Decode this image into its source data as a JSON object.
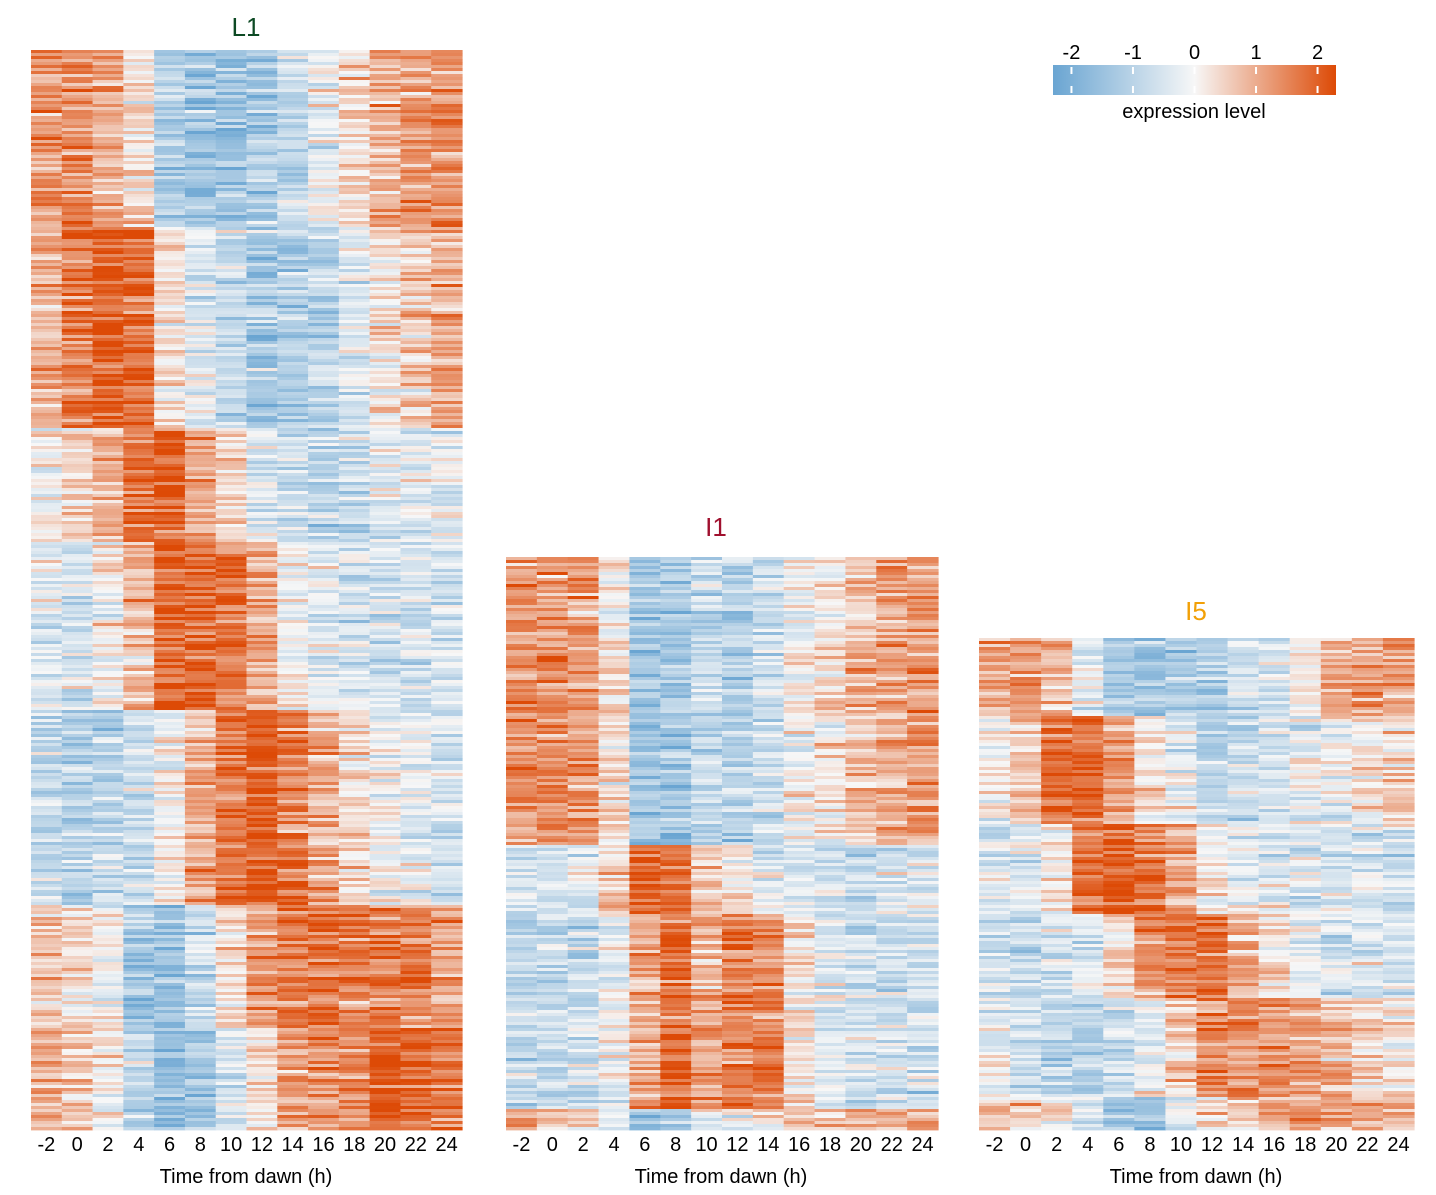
{
  "chart_data": [
    {
      "type": "heatmap",
      "title": "L1",
      "title_color": "#0d4a24",
      "xlabel": "Time from dawn (h)",
      "x": [
        "-2",
        "0",
        "2",
        "4",
        "6",
        "8",
        "10",
        "12",
        "14",
        "16",
        "18",
        "20",
        "22",
        "24"
      ],
      "clusters": [
        {
          "fraction": 0.165,
          "profile": [
            1.2,
            1.3,
            1.1,
            0.2,
            -1.2,
            -1.4,
            -1.5,
            -1.3,
            -0.8,
            -0.3,
            0.3,
            1.0,
            1.1,
            1.3
          ]
        },
        {
          "fraction": 0.185,
          "profile": [
            1.0,
            1.6,
            2.0,
            1.9,
            0.3,
            -0.4,
            -0.8,
            -1.3,
            -1.1,
            -0.9,
            -0.3,
            0.2,
            0.6,
            1.1
          ]
        },
        {
          "fraction": 0.105,
          "profile": [
            0.0,
            0.5,
            1.0,
            1.8,
            2.0,
            1.2,
            0.4,
            -0.3,
            -0.6,
            -0.8,
            -0.7,
            -0.5,
            -0.3,
            -0.2
          ]
        },
        {
          "fraction": 0.155,
          "profile": [
            -0.5,
            -0.6,
            0.1,
            0.8,
            2.0,
            1.9,
            1.6,
            1.0,
            0.0,
            -0.4,
            -0.5,
            -0.7,
            -0.6,
            -0.5
          ]
        },
        {
          "fraction": 0.18,
          "profile": [
            -0.8,
            -1.0,
            -0.9,
            -0.6,
            0.1,
            1.0,
            1.8,
            2.0,
            1.6,
            1.0,
            0.4,
            -0.1,
            -0.3,
            -0.6
          ]
        },
        {
          "fraction": 0.115,
          "profile": [
            0.6,
            0.4,
            0.0,
            -1.3,
            -1.6,
            -0.8,
            0.3,
            1.2,
            1.6,
            1.7,
            1.6,
            1.6,
            1.4,
            1.2
          ]
        },
        {
          "fraction": 0.095,
          "profile": [
            1.0,
            0.6,
            0.1,
            -1.0,
            -1.5,
            -1.3,
            -0.5,
            0.4,
            1.0,
            1.3,
            1.5,
            2.0,
            1.9,
            1.8
          ]
        }
      ]
    },
    {
      "type": "heatmap",
      "title": "I1",
      "title_color": "#a0102e",
      "xlabel": "Time from dawn (h)",
      "x": [
        "-2",
        "0",
        "2",
        "4",
        "6",
        "8",
        "10",
        "12",
        "14",
        "16",
        "18",
        "20",
        "22",
        "24"
      ],
      "clusters": [
        {
          "fraction": 0.5,
          "profile": [
            1.3,
            1.4,
            1.3,
            0.3,
            -1.3,
            -1.4,
            -0.8,
            -1.0,
            -0.7,
            -0.1,
            0.3,
            0.8,
            1.1,
            1.3
          ]
        },
        {
          "fraction": 0.12,
          "profile": [
            -0.5,
            -0.6,
            -0.3,
            0.6,
            2.0,
            1.7,
            0.6,
            0.2,
            -0.2,
            -0.4,
            -0.5,
            -0.7,
            -0.4,
            -0.3
          ]
        },
        {
          "fraction": 0.34,
          "profile": [
            -0.8,
            -0.9,
            -0.8,
            -0.2,
            0.9,
            1.8,
            1.0,
            1.6,
            1.4,
            0.2,
            -0.4,
            -0.6,
            -0.6,
            -0.7
          ]
        },
        {
          "fraction": 0.04,
          "profile": [
            1.1,
            0.7,
            0.4,
            -0.3,
            -1.4,
            -1.2,
            -0.3,
            0.0,
            0.3,
            0.8,
            1.0,
            1.0,
            0.9,
            1.0
          ]
        }
      ]
    },
    {
      "type": "heatmap",
      "title": "I5",
      "title_color": "#f2a007",
      "xlabel": "Time from dawn (h)",
      "x": [
        "-2",
        "0",
        "2",
        "4",
        "6",
        "8",
        "10",
        "12",
        "14",
        "16",
        "18",
        "20",
        "22",
        "24"
      ],
      "clusters": [
        {
          "fraction": 0.16,
          "profile": [
            1.1,
            1.3,
            0.8,
            -0.3,
            -1.2,
            -1.3,
            -1.2,
            -1.0,
            -0.7,
            -0.5,
            0.2,
            1.0,
            1.2,
            1.3
          ]
        },
        {
          "fraction": 0.22,
          "profile": [
            0.0,
            0.6,
            1.8,
            1.9,
            1.2,
            0.3,
            -0.3,
            -0.9,
            -0.7,
            -0.5,
            -0.2,
            0.0,
            0.3,
            0.4
          ]
        },
        {
          "fraction": 0.18,
          "profile": [
            -0.4,
            -0.4,
            0.0,
            1.7,
            2.0,
            1.6,
            1.0,
            0.2,
            -0.3,
            -0.5,
            -0.5,
            -0.4,
            -0.5,
            -0.7
          ]
        },
        {
          "fraction": 0.17,
          "profile": [
            -0.6,
            -0.8,
            -0.7,
            -0.4,
            0.5,
            1.4,
            1.8,
            1.8,
            0.9,
            0.2,
            -0.2,
            -0.5,
            -0.5,
            -0.6
          ]
        },
        {
          "fraction": 0.2,
          "profile": [
            -0.3,
            -0.6,
            -1.0,
            -1.1,
            -0.6,
            -0.2,
            0.6,
            1.5,
            1.4,
            1.3,
            1.0,
            0.7,
            0.4,
            0.2
          ]
        },
        {
          "fraction": 0.07,
          "profile": [
            0.6,
            0.4,
            0.3,
            -0.5,
            -1.3,
            -1.3,
            -0.4,
            0.3,
            0.6,
            1.0,
            1.3,
            1.2,
            1.0,
            0.8
          ]
        }
      ]
    }
  ],
  "legend": {
    "title": "expression level",
    "ticks": [
      "-2",
      "-1",
      "0",
      "1",
      "2"
    ],
    "tick_values": [
      -2,
      -1,
      0,
      1,
      2
    ],
    "range": [
      -2.3,
      2.3
    ],
    "colors": {
      "low": "#6aa5d2",
      "mid": "#f7f7f7",
      "high": "#dd4a06"
    }
  }
}
